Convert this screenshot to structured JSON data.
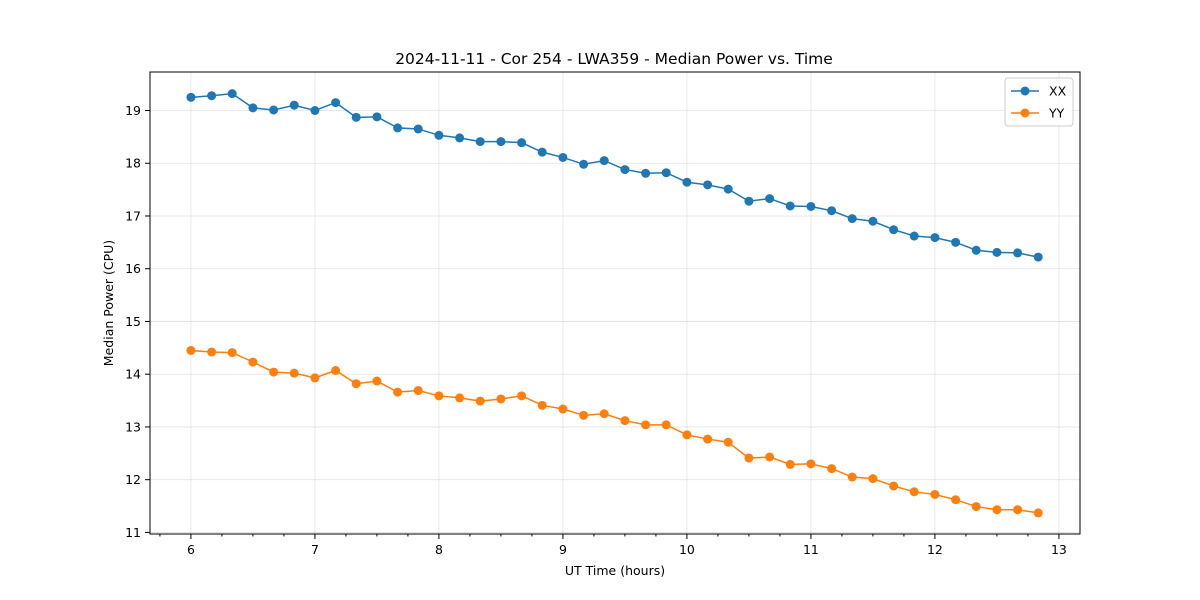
{
  "chart_data": {
    "type": "line",
    "title": "2024-11-11 - Cor 254 - LWA359 - Median Power vs. Time",
    "xlabel": "UT Time (hours)",
    "ylabel": "Median Power (CPU)",
    "xlim": [
      5.67,
      13.17
    ],
    "ylim": [
      10.97,
      19.73
    ],
    "xticks": [
      6,
      7,
      8,
      9,
      10,
      11,
      12,
      13
    ],
    "xminor_step": 0.25,
    "yticks": [
      11,
      12,
      13,
      14,
      15,
      16,
      17,
      18,
      19
    ],
    "grid": true,
    "legend": "top-right",
    "x": [
      6.0,
      6.167,
      6.333,
      6.5,
      6.667,
      6.833,
      7.0,
      7.167,
      7.333,
      7.5,
      7.667,
      7.833,
      8.0,
      8.167,
      8.333,
      8.5,
      8.667,
      8.833,
      9.0,
      9.167,
      9.333,
      9.5,
      9.667,
      9.833,
      10.0,
      10.167,
      10.333,
      10.5,
      10.667,
      10.833,
      11.0,
      11.167,
      11.333,
      11.5,
      11.667,
      11.833,
      12.0,
      12.167,
      12.333,
      12.5,
      12.667,
      12.833
    ],
    "series": [
      {
        "name": "XX",
        "color": "#1f77b4",
        "values": [
          19.25,
          19.28,
          19.32,
          19.05,
          19.01,
          19.1,
          19.0,
          19.15,
          18.87,
          18.88,
          18.67,
          18.65,
          18.53,
          18.48,
          18.41,
          18.41,
          18.39,
          18.21,
          18.11,
          17.98,
          18.05,
          17.88,
          17.81,
          17.82,
          17.64,
          17.59,
          17.51,
          17.28,
          17.33,
          17.19,
          17.18,
          17.1,
          16.95,
          16.9,
          16.74,
          16.62,
          16.59,
          16.5,
          16.35,
          16.31,
          16.3,
          16.22
        ]
      },
      {
        "name": "YY",
        "color": "#ff7f0e",
        "values": [
          14.45,
          14.42,
          14.41,
          14.23,
          14.04,
          14.02,
          13.93,
          14.07,
          13.82,
          13.87,
          13.66,
          13.69,
          13.59,
          13.55,
          13.49,
          13.53,
          13.59,
          13.41,
          13.34,
          13.22,
          13.25,
          13.12,
          13.04,
          13.04,
          12.85,
          12.77,
          12.71,
          12.41,
          12.43,
          12.29,
          12.3,
          12.21,
          12.05,
          12.02,
          11.88,
          11.77,
          11.72,
          11.62,
          11.49,
          11.43,
          11.43,
          11.37
        ]
      }
    ]
  }
}
